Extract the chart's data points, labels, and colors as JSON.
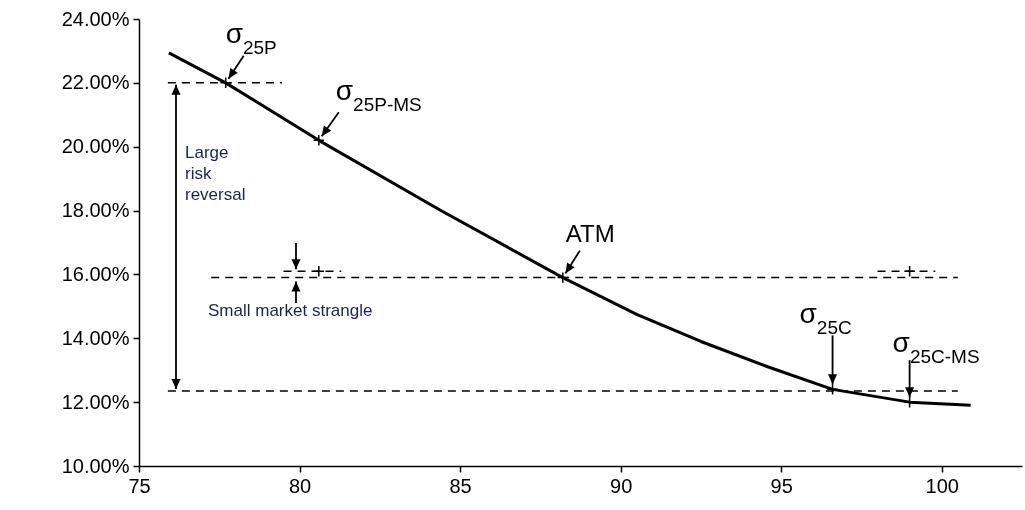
{
  "chart_data": {
    "type": "line",
    "xlim": [
      75,
      102.5
    ],
    "xticks": [
      75,
      80,
      85,
      90,
      95,
      100
    ],
    "ylim": [
      10,
      24
    ],
    "yticks": [
      {
        "value": 10,
        "label": "10.00%"
      },
      {
        "value": 12,
        "label": "12.00%"
      },
      {
        "value": 14,
        "label": "14.00%"
      },
      {
        "value": 16,
        "label": "16.00%"
      },
      {
        "value": 18,
        "label": "18.00%"
      },
      {
        "value": 20,
        "label": "20.00%"
      },
      {
        "value": 22,
        "label": "22.00%"
      },
      {
        "value": 24,
        "label": "24.00%"
      }
    ],
    "series": [
      {
        "color": "#000000",
        "line_style": "solid",
        "x": [
          75.93,
          77.7,
          80.6,
          84.4,
          88.2,
          90.5,
          92.5,
          94.6,
          96.6,
          99.0,
          100.9
        ],
        "values": [
          22.94,
          22.0,
          20.2,
          18.0,
          15.9,
          14.75,
          13.9,
          13.1,
          12.4,
          12.0,
          11.9
        ]
      },
      {
        "color": "#000000",
        "line_style": "dashed",
        "x": [
          75.9,
          79.45
        ],
        "values": [
          22,
          22
        ]
      },
      {
        "color": "#000000",
        "line_style": "dashed",
        "x": [
          77.25,
          100.5
        ],
        "values": [
          15.9,
          15.9
        ]
      },
      {
        "color": "#000000",
        "line_style": "dashed",
        "x": [
          75.9,
          100.5
        ],
        "values": [
          12.35,
          12.35
        ]
      },
      {
        "color": "#000000",
        "line_style": "dashed",
        "x": [
          79.5,
          81.3
        ],
        "values": [
          16.1,
          16.1
        ]
      },
      {
        "color": "#000000",
        "line_style": "dashed",
        "x": [
          98.0,
          99.8
        ],
        "values": [
          16.1,
          16.1
        ]
      },
      {
        "type": "scatter",
        "color": "#000000",
        "marker": "cross",
        "x": [
          77.7,
          80.6,
          88.2,
          96.6,
          99.0
        ],
        "values": [
          22.0,
          20.2,
          15.9,
          12.4,
          12.0
        ]
      },
      {
        "type": "scatter",
        "color": "#000000",
        "marker": "cross",
        "x": [
          80.6,
          99.0
        ],
        "values": [
          16.1,
          16.1
        ]
      }
    ],
    "annotations": [
      {
        "text": "σ$_{25P}$",
        "x": 77.7,
        "y": 22.0
      },
      {
        "text": "σ$_{25P-MS}$",
        "x": 80.6,
        "y": 20.2
      },
      {
        "text": "ATM",
        "x": 88.2,
        "y": 15.9
      },
      {
        "text": "σ$_{25C}$",
        "x": 96.6,
        "y": 12.4
      },
      {
        "text": "σ$_{25C-MS}$",
        "x": 99.0,
        "y": 12.0
      },
      "Large risk reversal",
      "Small market strangle"
    ]
  }
}
